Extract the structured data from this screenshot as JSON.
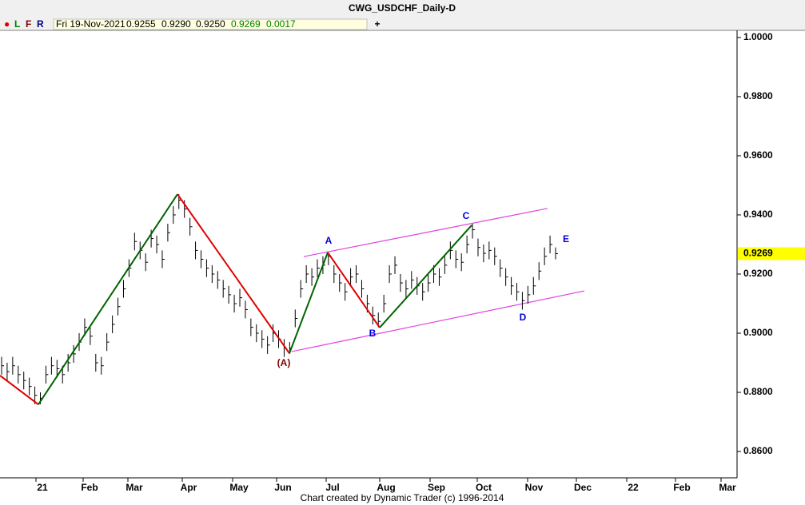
{
  "chart_data": {
    "type": "ohlc",
    "title": "CWG_USDCHF_Daily-D",
    "header": {
      "dot": "●",
      "flags": [
        "L",
        "F",
        "R"
      ],
      "date": "Fri 19-Nov-2021",
      "open": "0.9255",
      "high": "0.9290",
      "low": "0.9250",
      "close": "0.9269",
      "change": "0.0017",
      "plus": "+"
    },
    "footer": "Chart created by Dynamic Trader  (c) 1996-2014",
    "x_labels": [
      "21",
      "Feb",
      "Mar",
      "Apr",
      "May",
      "Jun",
      "Jul",
      "Aug",
      "Sep",
      "Oct",
      "Nov",
      "Dec",
      "22",
      "Feb",
      "Mar"
    ],
    "ylim": [
      0.8511,
      1.0024
    ],
    "yticks": [
      {
        "value": 0.86,
        "label": "0.8600"
      },
      {
        "value": 0.88,
        "label": "0.8800"
      },
      {
        "value": 0.9,
        "label": "0.9000"
      },
      {
        "value": 0.92,
        "label": "0.9200"
      },
      {
        "value": 0.94,
        "label": "0.9400"
      },
      {
        "value": 0.96,
        "label": "0.9600"
      },
      {
        "value": 0.98,
        "label": "0.9800"
      },
      {
        "value": 1.0,
        "label": "1.0000"
      }
    ],
    "last_price": 0.9269,
    "bar_color": "#000000",
    "bars": {
      "high": [
        0.892,
        0.89,
        0.892,
        0.889,
        0.887,
        0.885,
        0.882,
        0.88,
        0.889,
        0.892,
        0.891,
        0.889,
        0.893,
        0.896,
        0.9,
        0.905,
        0.902,
        0.893,
        0.892,
        0.9,
        0.906,
        0.912,
        0.918,
        0.925,
        0.934,
        0.931,
        0.927,
        0.935,
        0.933,
        0.928,
        0.937,
        0.943,
        0.947,
        0.945,
        0.939,
        0.931,
        0.928,
        0.925,
        0.923,
        0.921,
        0.918,
        0.916,
        0.913,
        0.915,
        0.911,
        0.905,
        0.903,
        0.901,
        0.899,
        0.903,
        0.901,
        0.898,
        0.897,
        0.908,
        0.918,
        0.923,
        0.922,
        0.925,
        0.926,
        0.927,
        0.923,
        0.92,
        0.917,
        0.922,
        0.923,
        0.918,
        0.913,
        0.909,
        0.907,
        0.913,
        0.923,
        0.926,
        0.92,
        0.918,
        0.921,
        0.919,
        0.917,
        0.92,
        0.923,
        0.922,
        0.926,
        0.931,
        0.928,
        0.927,
        0.933,
        0.937,
        0.932,
        0.93,
        0.931,
        0.929,
        0.925,
        0.922,
        0.919,
        0.917,
        0.914,
        0.916,
        0.919,
        0.924,
        0.929,
        0.933,
        0.929
      ],
      "low": [
        0.886,
        0.884,
        0.886,
        0.883,
        0.881,
        0.879,
        0.876,
        0.876,
        0.883,
        0.886,
        0.885,
        0.883,
        0.887,
        0.89,
        0.894,
        0.899,
        0.896,
        0.887,
        0.886,
        0.894,
        0.9,
        0.906,
        0.912,
        0.919,
        0.928,
        0.925,
        0.921,
        0.929,
        0.927,
        0.922,
        0.931,
        0.937,
        0.942,
        0.939,
        0.933,
        0.925,
        0.922,
        0.919,
        0.917,
        0.915,
        0.912,
        0.91,
        0.907,
        0.909,
        0.905,
        0.899,
        0.897,
        0.895,
        0.893,
        0.897,
        0.895,
        0.892,
        0.893,
        0.902,
        0.912,
        0.917,
        0.916,
        0.919,
        0.92,
        0.923,
        0.917,
        0.914,
        0.911,
        0.916,
        0.917,
        0.912,
        0.907,
        0.903,
        0.902,
        0.907,
        0.917,
        0.92,
        0.914,
        0.912,
        0.915,
        0.913,
        0.911,
        0.914,
        0.917,
        0.916,
        0.92,
        0.925,
        0.922,
        0.921,
        0.927,
        0.932,
        0.926,
        0.924,
        0.925,
        0.923,
        0.919,
        0.916,
        0.913,
        0.911,
        0.908,
        0.91,
        0.913,
        0.918,
        0.923,
        0.927,
        0.925
      ],
      "close": [
        0.889,
        0.887,
        0.889,
        0.886,
        0.884,
        0.882,
        0.879,
        0.878,
        0.886,
        0.889,
        0.888,
        0.886,
        0.89,
        0.893,
        0.897,
        0.902,
        0.899,
        0.89,
        0.889,
        0.897,
        0.903,
        0.909,
        0.915,
        0.922,
        0.931,
        0.928,
        0.924,
        0.932,
        0.93,
        0.925,
        0.934,
        0.94,
        0.945,
        0.942,
        0.936,
        0.928,
        0.925,
        0.922,
        0.92,
        0.918,
        0.915,
        0.913,
        0.91,
        0.912,
        0.908,
        0.902,
        0.9,
        0.898,
        0.896,
        0.9,
        0.898,
        0.895,
        0.895,
        0.905,
        0.915,
        0.92,
        0.919,
        0.922,
        0.923,
        0.926,
        0.92,
        0.917,
        0.914,
        0.919,
        0.92,
        0.915,
        0.91,
        0.906,
        0.904,
        0.91,
        0.92,
        0.923,
        0.917,
        0.915,
        0.918,
        0.916,
        0.914,
        0.917,
        0.92,
        0.919,
        0.923,
        0.928,
        0.925,
        0.924,
        0.93,
        0.935,
        0.929,
        0.927,
        0.928,
        0.926,
        0.922,
        0.919,
        0.916,
        0.914,
        0.911,
        0.913,
        0.916,
        0.921,
        0.926,
        0.93,
        0.9269
      ]
    },
    "zigzag": {
      "values": [
        0.8857,
        0.8759,
        0.947,
        0.8932,
        0.9273,
        0.9019,
        0.9365
      ],
      "colors": [
        "#e00000",
        "#006400",
        "#e00000",
        "#006400",
        "#e00000",
        "#006400"
      ]
    },
    "channel": {
      "color": "#e040e0",
      "upper": [
        0.9259,
        0.9422
      ],
      "lower": [
        0.8938,
        0.9143
      ]
    },
    "wave_labels": [
      {
        "text": "(A)",
        "color": "#800000"
      },
      {
        "text": "A",
        "color": "#0000e0"
      },
      {
        "text": "B",
        "color": "#0000e0"
      },
      {
        "text": "C",
        "color": "#0000e0"
      },
      {
        "text": "D",
        "color": "#0000e0"
      },
      {
        "text": "E",
        "color": "#0000e0"
      }
    ]
  }
}
